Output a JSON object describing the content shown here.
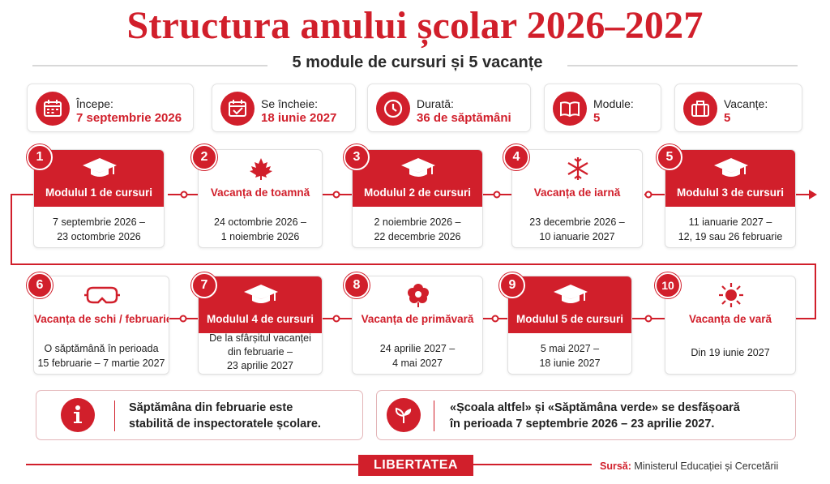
{
  "title": "Structura anului școlar 2026–2027",
  "subtitle": "5 module de cursuri și 5 vacanțe",
  "colors": {
    "accent": "#d11f2b"
  },
  "stats": [
    {
      "label": "Începe:",
      "value": "7 septembrie 2026",
      "icon": "calendar-icon"
    },
    {
      "label": "Se încheie:",
      "value": "18 iunie 2027",
      "icon": "calendar-check-icon"
    },
    {
      "label": "Durată:",
      "value": "36 de săptămâni",
      "icon": "clock-icon"
    },
    {
      "label": "Module:",
      "value": "5",
      "icon": "book-icon"
    },
    {
      "label": "Vacanțe:",
      "value": "5",
      "icon": "suitcase-icon"
    }
  ],
  "periods": [
    {
      "num": "1",
      "name": "Modulul 1 de cursuri",
      "dates": [
        "7 septembrie 2026 –",
        "23 octombrie 2026"
      ],
      "type": "module",
      "icon": "graduation-cap-icon"
    },
    {
      "num": "2",
      "name": "Vacanța de toamnă",
      "dates": [
        "24 octombrie 2026 –",
        "1 noiembrie 2026"
      ],
      "type": "vacation",
      "icon": "maple-leaf-icon"
    },
    {
      "num": "3",
      "name": "Modulul 2 de cursuri",
      "dates": [
        "2 noiembrie 2026 –",
        "22 decembrie 2026"
      ],
      "type": "module",
      "icon": "graduation-cap-icon"
    },
    {
      "num": "4",
      "name": "Vacanța de iarnă",
      "dates": [
        "23 decembrie 2026 –",
        "10 ianuarie 2027"
      ],
      "type": "vacation",
      "icon": "snowflake-icon"
    },
    {
      "num": "5",
      "name": "Modulul 3 de cursuri",
      "dates": [
        "11 ianuarie 2027 –",
        "12, 19 sau 26 februarie 2027"
      ],
      "type": "module",
      "icon": "graduation-cap-icon"
    },
    {
      "num": "6",
      "name": "Vacanța de schi / februarie",
      "dates": [
        "O săptămână în perioada",
        "15 februarie – 7 martie 2027"
      ],
      "type": "vacation",
      "icon": "ski-goggles-icon"
    },
    {
      "num": "7",
      "name": "Modulul 4 de cursuri",
      "dates": [
        "De la sfârșitul vacanței",
        "din februarie –",
        "23 aprilie 2027"
      ],
      "type": "module",
      "icon": "graduation-cap-icon"
    },
    {
      "num": "8",
      "name": "Vacanța de primăvară",
      "dates": [
        "24 aprilie 2027 –",
        "4 mai 2027"
      ],
      "type": "vacation",
      "icon": "flower-icon"
    },
    {
      "num": "9",
      "name": "Modulul 5 de cursuri",
      "dates": [
        "5 mai 2027 –",
        "18 iunie 2027"
      ],
      "type": "module",
      "icon": "graduation-cap-icon"
    },
    {
      "num": "10",
      "name": "Vacanța de vară",
      "dates": [
        "Din 19 iunie 2027"
      ],
      "type": "vacation",
      "icon": "sun-icon"
    }
  ],
  "notes": [
    {
      "lines": [
        "Săptămâna din februarie este",
        "stabilită de inspectoratele școlare."
      ],
      "icon": "info-icon"
    },
    {
      "lines": [
        "«Școala altfel» și «Săptămâna verde» se desfășoară",
        "în perioada 7 septembrie 2026 – 23 aprilie 2027."
      ],
      "icon": "leaves-icon"
    }
  ],
  "footer": {
    "brand": "LIBERTATEA",
    "source_label": "Sursă:",
    "source_text": "Ministerul Educației și Cercetării"
  }
}
